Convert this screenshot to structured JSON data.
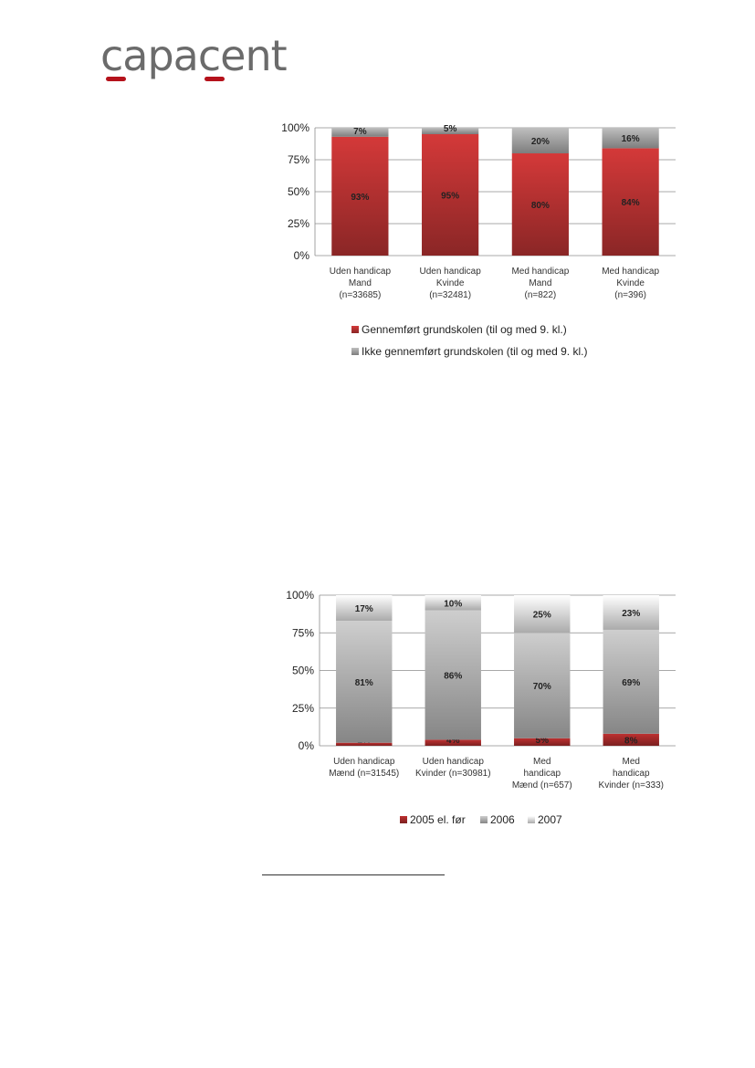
{
  "logo": {
    "text": "capacent",
    "brand_color": "#b5121b",
    "text_color": "#6b6b6b"
  },
  "chart_data": [
    {
      "type": "bar",
      "stacked": true,
      "percent": true,
      "categories": [
        [
          "Uden handicap",
          "Mand",
          "(n=33685)"
        ],
        [
          "Uden handicap",
          "Kvinde",
          "(n=32481)"
        ],
        [
          "Med handicap",
          "Mand",
          "(n=822)"
        ],
        [
          "Med handicap",
          "Kvinde",
          "(n=396)"
        ]
      ],
      "series": [
        {
          "name": "Gennemført grundskolen (til og med 9. kl.)",
          "values": [
            93,
            95,
            80,
            84
          ],
          "labels": [
            "93%",
            "95%",
            "80%",
            "84%"
          ],
          "color": "#b83232"
        },
        {
          "name": "Ikke gennemført grundskolen  (til og med 9. kl.)",
          "values": [
            7,
            5,
            20,
            16
          ],
          "labels": [
            "7%",
            "5%",
            "20%",
            "16%"
          ],
          "color": "#a6a6a6"
        }
      ],
      "yticks": [
        "0%",
        "25%",
        "50%",
        "75%",
        "100%"
      ],
      "ylim": [
        0,
        100
      ],
      "grid": true,
      "legend": "bottom"
    },
    {
      "type": "bar",
      "stacked": true,
      "percent": true,
      "categories": [
        [
          "Uden handicap",
          "Mænd (n=31545)"
        ],
        [
          "Uden handicap",
          "Kvinder (n=30981)"
        ],
        [
          "Med",
          "handicap",
          "Mænd (n=657)"
        ],
        [
          "Med",
          "handicap",
          "Kvinder (n=333)"
        ]
      ],
      "series": [
        {
          "name": "2005 el. før",
          "values": [
            2,
            4,
            5,
            8
          ],
          "labels": [
            "2%",
            "4%",
            "5%",
            "8%"
          ],
          "color": "#a52a2a"
        },
        {
          "name": "2006",
          "values": [
            81,
            86,
            70,
            69
          ],
          "labels": [
            "81%",
            "86%",
            "70%",
            "69%"
          ],
          "color": "#b3b3b3"
        },
        {
          "name": "2007",
          "values": [
            17,
            10,
            25,
            23
          ],
          "labels": [
            "17%",
            "10%",
            "25%",
            "23%"
          ],
          "color": "#e3e3e3"
        }
      ],
      "yticks": [
        "0%",
        "25%",
        "50%",
        "75%",
        "100%"
      ],
      "ylim": [
        0,
        100
      ],
      "grid": true,
      "legend": "bottom"
    }
  ]
}
